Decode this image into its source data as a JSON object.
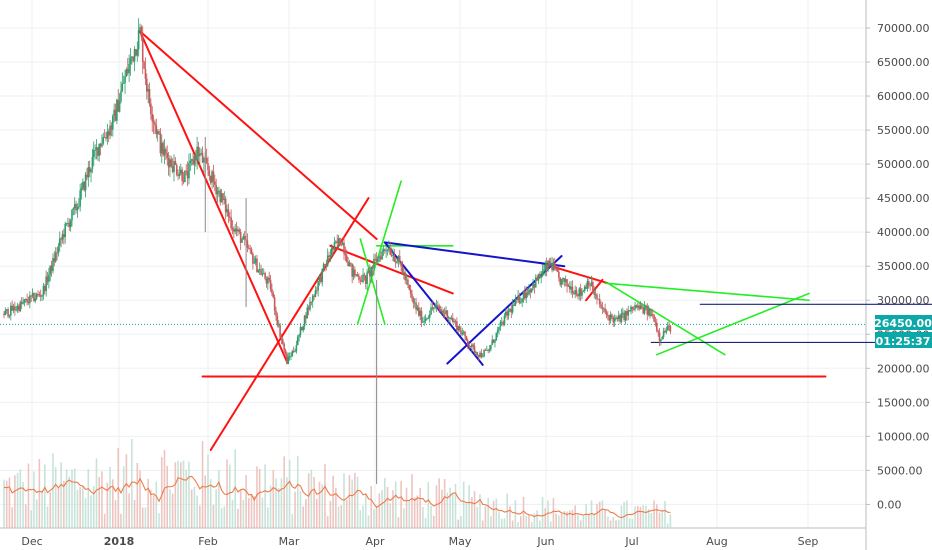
{
  "chart_data": {
    "type": "candlestick",
    "x_labels": [
      "Dec",
      "2018",
      "Feb",
      "Mar",
      "Apr",
      "May",
      "Jun",
      "Jul",
      "Aug",
      "Sep"
    ],
    "y_ticks": [
      "70000.00",
      "65000.00",
      "60000.00",
      "55000.00",
      "50000.00",
      "45000.00",
      "40000.00",
      "35000.00",
      "30000.00",
      "25000.00",
      "20000.00",
      "15000.00",
      "10000.00",
      "5000.00",
      "0.00"
    ],
    "ylim": [
      -3000,
      73000
    ],
    "grid": true,
    "current_price": "26450.00",
    "countdown": "01:25:37",
    "price_path": [
      [
        0,
        28000
      ],
      [
        5,
        29000
      ],
      [
        9,
        30000
      ],
      [
        14,
        31000
      ],
      [
        18,
        35500
      ],
      [
        22,
        40000
      ],
      [
        27,
        44000
      ],
      [
        31,
        49000
      ],
      [
        35,
        53000
      ],
      [
        40,
        56000
      ],
      [
        44,
        62000
      ],
      [
        48,
        67000
      ],
      [
        50,
        69500
      ],
      [
        53,
        60000
      ],
      [
        58,
        52000
      ],
      [
        62,
        50000
      ],
      [
        67,
        48000
      ],
      [
        71,
        52000
      ],
      [
        75,
        49000
      ],
      [
        80,
        45000
      ],
      [
        84,
        41000
      ],
      [
        89,
        38000
      ],
      [
        93,
        35000
      ],
      [
        98,
        32000
      ],
      [
        101,
        26000
      ],
      [
        104,
        21000
      ],
      [
        107,
        23000
      ],
      [
        111,
        28000
      ],
      [
        115,
        32000
      ],
      [
        120,
        37000
      ],
      [
        124,
        39000
      ],
      [
        128,
        34000
      ],
      [
        133,
        33000
      ],
      [
        137,
        36000
      ],
      [
        141,
        38000
      ],
      [
        146,
        35000
      ],
      [
        150,
        30000
      ],
      [
        154,
        27000
      ],
      [
        158,
        29000
      ],
      [
        163,
        28000
      ],
      [
        167,
        26000
      ],
      [
        172,
        23000
      ],
      [
        175,
        22000
      ],
      [
        178,
        22500
      ],
      [
        181,
        25000
      ],
      [
        185,
        28000
      ],
      [
        189,
        30000
      ],
      [
        194,
        32000
      ],
      [
        198,
        34000
      ],
      [
        201,
        35500
      ],
      [
        204,
        33000
      ],
      [
        208,
        32000
      ],
      [
        212,
        31000
      ],
      [
        215,
        33000
      ],
      [
        218,
        30000
      ],
      [
        221,
        28000
      ],
      [
        225,
        27000
      ],
      [
        229,
        28000
      ],
      [
        232,
        29000
      ],
      [
        236,
        28500
      ],
      [
        239,
        27500
      ],
      [
        241,
        24500
      ],
      [
        243,
        25500
      ],
      [
        245,
        26000
      ]
    ],
    "lines": [
      {
        "x": [
          50,
          104
        ],
        "y": [
          69500,
          21000
        ],
        "color": "#ff1111"
      },
      {
        "x": [
          50,
          137
        ],
        "y": [
          69500,
          39000
        ],
        "color": "#ff1111"
      },
      {
        "x": [
          73,
          135
        ],
        "y": [
          18800,
          18800
        ],
        "color": "#ff1111"
      },
      {
        "x": [
          135,
          302
        ],
        "y": [
          18800,
          18800
        ],
        "color": "#ff1111"
      },
      {
        "x": [
          76,
          134
        ],
        "y": [
          8000,
          45000
        ],
        "color": "#ff1111"
      },
      {
        "x": [
          120,
          165
        ],
        "y": [
          38000,
          31000
        ],
        "color": "#ff1111"
      },
      {
        "x": [
          197,
          222
        ],
        "y": [
          35500,
          32500
        ],
        "color": "#ff1111"
      },
      {
        "x": [
          214,
          220
        ],
        "y": [
          30000,
          33000
        ],
        "color": "#ff1111"
      },
      {
        "x": [
          130,
          146
        ],
        "y": [
          26500,
          47500
        ],
        "color": "#22ee22"
      },
      {
        "x": [
          131,
          140
        ],
        "y": [
          39000,
          26500
        ],
        "color": "#22ee22"
      },
      {
        "x": [
          137,
          165
        ],
        "y": [
          38000,
          38000
        ],
        "color": "#22ee22"
      },
      {
        "x": [
          221,
          296
        ],
        "y": [
          32500,
          30000
        ],
        "color": "#22ee22"
      },
      {
        "x": [
          222,
          265
        ],
        "y": [
          32500,
          22000
        ],
        "color": "#22ee22"
      },
      {
        "x": [
          240,
          296
        ],
        "y": [
          22000,
          31000
        ],
        "color": "#22ee22"
      },
      {
        "x": [
          140,
          206
        ],
        "y": [
          38500,
          35000
        ],
        "color": "#1414cc"
      },
      {
        "x": [
          140,
          176
        ],
        "y": [
          38500,
          20500
        ],
        "color": "#1414cc"
      },
      {
        "x": [
          163,
          205
        ],
        "y": [
          20700,
          36500
        ],
        "color": "#1414cc"
      },
      {
        "x": [
          256,
          355
        ],
        "y": [
          29400,
          29400
        ],
        "color": "#1a237e"
      },
      {
        "x": [
          238,
          345
        ],
        "y": [
          23800,
          23800
        ],
        "color": "#1a237e"
      }
    ]
  }
}
